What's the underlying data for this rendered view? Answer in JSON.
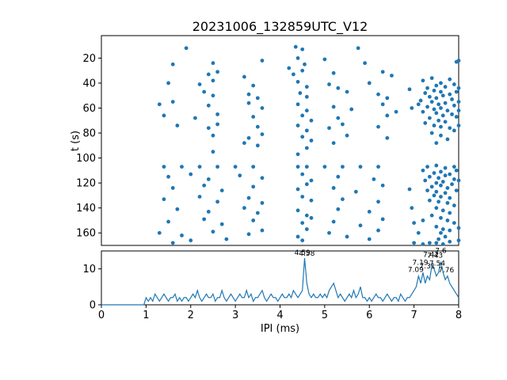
{
  "chart_data": {
    "type": "scatter",
    "title": "20231006_132859UTC_V12",
    "accent_color": "#1f77b4",
    "scatter": {
      "type": "scatter",
      "ylabel": "t (s)",
      "xlim": [
        0,
        8
      ],
      "ylim": [
        2,
        170
      ],
      "y_inverted": true,
      "yticks": [
        20,
        40,
        60,
        80,
        100,
        120,
        140,
        160
      ],
      "points": [
        [
          1.9,
          12
        ],
        [
          4.35,
          11
        ],
        [
          4.5,
          13
        ],
        [
          5.75,
          12
        ],
        [
          1.6,
          25
        ],
        [
          2.5,
          24
        ],
        [
          3.6,
          22
        ],
        [
          4.4,
          20
        ],
        [
          4.55,
          25
        ],
        [
          5.0,
          21
        ],
        [
          5.9,
          24
        ],
        [
          4.2,
          28
        ],
        [
          7.95,
          23
        ],
        [
          8.0,
          22
        ],
        [
          2.4,
          33
        ],
        [
          2.6,
          31
        ],
        [
          3.2,
          35
        ],
        [
          4.3,
          33
        ],
        [
          4.5,
          30
        ],
        [
          5.2,
          32
        ],
        [
          6.3,
          31
        ],
        [
          6.5,
          34
        ],
        [
          1.5,
          40
        ],
        [
          2.2,
          41
        ],
        [
          2.5,
          38
        ],
        [
          3.4,
          42
        ],
        [
          4.4,
          39
        ],
        [
          4.6,
          43
        ],
        [
          5.1,
          41
        ],
        [
          5.3,
          44
        ],
        [
          6.0,
          40
        ],
        [
          2.3,
          47
        ],
        [
          2.5,
          50
        ],
        [
          3.3,
          49
        ],
        [
          3.5,
          52
        ],
        [
          4.45,
          48
        ],
        [
          4.6,
          51
        ],
        [
          5.5,
          47
        ],
        [
          6.2,
          49
        ],
        [
          6.4,
          52
        ],
        [
          1.3,
          57
        ],
        [
          1.6,
          55
        ],
        [
          2.4,
          58
        ],
        [
          3.3,
          56
        ],
        [
          3.6,
          60
        ],
        [
          4.4,
          57
        ],
        [
          4.6,
          62
        ],
        [
          5.2,
          59
        ],
        [
          5.6,
          61
        ],
        [
          6.3,
          57
        ],
        [
          6.6,
          63
        ],
        [
          1.4,
          66
        ],
        [
          2.1,
          68
        ],
        [
          2.6,
          65
        ],
        [
          3.4,
          67
        ],
        [
          4.5,
          66
        ],
        [
          4.7,
          70
        ],
        [
          5.3,
          68
        ],
        [
          6.4,
          66
        ],
        [
          1.7,
          74
        ],
        [
          2.4,
          76
        ],
        [
          2.6,
          73
        ],
        [
          3.5,
          75
        ],
        [
          4.4,
          74
        ],
        [
          4.6,
          78
        ],
        [
          5.1,
          76
        ],
        [
          5.4,
          73
        ],
        [
          6.2,
          75
        ],
        [
          2.5,
          82
        ],
        [
          3.3,
          84
        ],
        [
          3.6,
          81
        ],
        [
          4.5,
          83
        ],
        [
          4.7,
          86
        ],
        [
          5.5,
          82
        ],
        [
          6.4,
          84
        ],
        [
          3.2,
          88
        ],
        [
          5.2,
          88
        ],
        [
          3.5,
          90
        ],
        [
          4.6,
          92
        ],
        [
          2.5,
          95
        ],
        [
          4.4,
          97
        ],
        [
          1.4,
          107
        ],
        [
          1.8,
          107
        ],
        [
          2.2,
          107
        ],
        [
          2.6,
          107
        ],
        [
          3.0,
          107
        ],
        [
          3.4,
          107
        ],
        [
          4.4,
          107
        ],
        [
          4.6,
          107
        ],
        [
          5.0,
          107
        ],
        [
          5.4,
          107
        ],
        [
          5.8,
          107
        ],
        [
          6.2,
          107
        ],
        [
          1.5,
          115
        ],
        [
          2.0,
          113
        ],
        [
          2.4,
          117
        ],
        [
          3.1,
          114
        ],
        [
          3.6,
          116
        ],
        [
          4.5,
          113
        ],
        [
          4.7,
          118
        ],
        [
          5.3,
          115
        ],
        [
          6.1,
          117
        ],
        [
          1.6,
          124
        ],
        [
          2.3,
          122
        ],
        [
          2.7,
          126
        ],
        [
          3.4,
          123
        ],
        [
          4.4,
          125
        ],
        [
          4.6,
          121
        ],
        [
          5.2,
          124
        ],
        [
          5.7,
          127
        ],
        [
          6.3,
          122
        ],
        [
          1.4,
          133
        ],
        [
          2.2,
          131
        ],
        [
          2.6,
          135
        ],
        [
          3.3,
          132
        ],
        [
          3.6,
          136
        ],
        [
          4.5,
          131
        ],
        [
          4.7,
          134
        ],
        [
          5.4,
          133
        ],
        [
          6.2,
          135
        ],
        [
          1.7,
          141
        ],
        [
          2.4,
          143
        ],
        [
          3.2,
          140
        ],
        [
          3.5,
          144
        ],
        [
          4.4,
          142
        ],
        [
          4.6,
          146
        ],
        [
          5.3,
          141
        ],
        [
          6.0,
          143
        ],
        [
          1.5,
          151
        ],
        [
          2.3,
          149
        ],
        [
          2.7,
          153
        ],
        [
          3.4,
          150
        ],
        [
          4.5,
          152
        ],
        [
          4.7,
          148
        ],
        [
          5.2,
          151
        ],
        [
          5.8,
          154
        ],
        [
          6.3,
          149
        ],
        [
          1.3,
          160
        ],
        [
          1.8,
          162
        ],
        [
          2.5,
          159
        ],
        [
          3.3,
          161
        ],
        [
          3.6,
          158
        ],
        [
          4.4,
          163
        ],
        [
          4.6,
          157
        ],
        [
          5.1,
          160
        ],
        [
          5.5,
          163
        ],
        [
          6.2,
          158
        ],
        [
          2.0,
          166
        ],
        [
          2.8,
          165
        ],
        [
          4.5,
          166
        ],
        [
          6.0,
          165
        ],
        [
          1.6,
          168
        ],
        [
          6.9,
          45
        ],
        [
          6.95,
          60
        ],
        [
          7.1,
          57
        ],
        [
          7.2,
          38
        ],
        [
          7.4,
          36
        ],
        [
          7.6,
          40
        ],
        [
          7.8,
          37
        ],
        [
          7.5,
          42
        ],
        [
          7.3,
          44
        ],
        [
          7.7,
          43
        ],
        [
          7.9,
          41
        ],
        [
          8.0,
          44
        ],
        [
          7.45,
          46
        ],
        [
          7.6,
          47
        ],
        [
          7.25,
          48
        ],
        [
          7.8,
          49
        ],
        [
          7.95,
          47
        ],
        [
          7.35,
          51
        ],
        [
          7.5,
          52
        ],
        [
          7.65,
          50
        ],
        [
          7.85,
          53
        ],
        [
          7.15,
          54
        ],
        [
          7.4,
          55
        ],
        [
          7.55,
          57
        ],
        [
          7.7,
          56
        ],
        [
          7.9,
          58
        ],
        [
          8.0,
          55
        ],
        [
          7.3,
          59
        ],
        [
          7.45,
          61
        ],
        [
          7.6,
          60
        ],
        [
          7.75,
          62
        ],
        [
          7.2,
          63
        ],
        [
          7.5,
          64
        ],
        [
          7.65,
          66
        ],
        [
          7.85,
          65
        ],
        [
          7.95,
          67
        ],
        [
          7.35,
          68
        ],
        [
          7.55,
          70
        ],
        [
          7.7,
          71
        ],
        [
          7.25,
          72
        ],
        [
          7.45,
          74
        ],
        [
          7.6,
          75
        ],
        [
          7.8,
          76
        ],
        [
          7.9,
          78
        ],
        [
          7.4,
          80
        ],
        [
          7.6,
          82
        ],
        [
          7.75,
          85
        ],
        [
          7.5,
          88
        ],
        [
          8.0,
          62
        ],
        [
          8.0,
          74
        ],
        [
          7.3,
          107
        ],
        [
          7.5,
          106
        ],
        [
          7.7,
          108
        ],
        [
          7.9,
          107
        ],
        [
          7.2,
          110
        ],
        [
          7.45,
          112
        ],
        [
          7.6,
          111
        ],
        [
          7.8,
          113
        ],
        [
          7.95,
          110
        ],
        [
          7.35,
          115
        ],
        [
          7.55,
          116
        ],
        [
          7.7,
          114
        ],
        [
          7.9,
          117
        ],
        [
          7.25,
          118
        ],
        [
          7.5,
          120
        ],
        [
          7.65,
          119
        ],
        [
          7.85,
          121
        ],
        [
          8.0,
          118
        ],
        [
          7.4,
          123
        ],
        [
          7.6,
          122
        ],
        [
          7.75,
          124
        ],
        [
          7.3,
          126
        ],
        [
          7.5,
          127
        ],
        [
          7.7,
          128
        ],
        [
          7.95,
          126
        ],
        [
          7.45,
          130
        ],
        [
          7.6,
          131
        ],
        [
          7.8,
          132
        ],
        [
          7.35,
          134
        ],
        [
          7.55,
          135
        ],
        [
          7.75,
          136
        ],
        [
          7.9,
          138
        ],
        [
          7.5,
          140
        ],
        [
          7.65,
          142
        ],
        [
          7.8,
          144
        ],
        [
          7.4,
          146
        ],
        [
          7.6,
          148
        ],
        [
          7.75,
          150
        ],
        [
          7.9,
          152
        ],
        [
          7.5,
          155
        ],
        [
          7.65,
          157
        ],
        [
          7.8,
          158
        ],
        [
          7.6,
          160
        ],
        [
          7.7,
          163
        ],
        [
          7.55,
          165
        ],
        [
          8.0,
          156
        ],
        [
          8.0,
          166
        ],
        [
          7.2,
          150
        ],
        [
          7.1,
          160
        ],
        [
          7.0,
          152
        ],
        [
          6.95,
          140
        ],
        [
          6.9,
          125
        ],
        [
          7.0,
          168
        ],
        [
          7.2,
          169
        ],
        [
          7.5,
          168
        ],
        [
          7.35,
          168
        ],
        [
          7.65,
          169
        ],
        [
          7.8,
          167
        ]
      ]
    },
    "hist": {
      "type": "line",
      "xlabel": "IPI (ms)",
      "xlim": [
        0,
        8
      ],
      "ylim": [
        0,
        15
      ],
      "xticks": [
        0,
        1,
        2,
        3,
        4,
        5,
        6,
        7,
        8
      ],
      "yticks": [
        0,
        10
      ],
      "bin_start": 0,
      "bin_step": 0.05,
      "counts": [
        0,
        0,
        0,
        0,
        0,
        0,
        0,
        0,
        0,
        0,
        0,
        0,
        0,
        0,
        0,
        0,
        0,
        0,
        0,
        0,
        2,
        1,
        2,
        1,
        3,
        2,
        1,
        2,
        3,
        2,
        1,
        2,
        2,
        3,
        1,
        2,
        1,
        2,
        2,
        1,
        2,
        3,
        2,
        4,
        2,
        1,
        2,
        3,
        2,
        2,
        3,
        1,
        2,
        2,
        4,
        2,
        1,
        2,
        3,
        2,
        1,
        2,
        3,
        2,
        2,
        4,
        2,
        3,
        1,
        2,
        2,
        3,
        4,
        2,
        1,
        2,
        3,
        2,
        2,
        1,
        2,
        3,
        2,
        2,
        3,
        2,
        4,
        3,
        2,
        3,
        4,
        13,
        6,
        3,
        2,
        3,
        2,
        2,
        3,
        2,
        3,
        2,
        4,
        5,
        6,
        4,
        2,
        3,
        2,
        1,
        2,
        3,
        2,
        4,
        2,
        3,
        5,
        2,
        2,
        1,
        2,
        1,
        2,
        3,
        2,
        2,
        1,
        2,
        3,
        2,
        1,
        2,
        2,
        1,
        3,
        2,
        1,
        2,
        2,
        3,
        4,
        5,
        8,
        6,
        9,
        6,
        8,
        7,
        11,
        10,
        8,
        9,
        12,
        9,
        7,
        8,
        6,
        5,
        4,
        3,
        2
      ],
      "annotations": [
        {
          "label": "4.59",
          "x": 4.5,
          "y": 13.9
        },
        {
          "label": "4.58",
          "x": 4.6,
          "y": 13.7
        },
        {
          "label": "7.6",
          "x": 7.6,
          "y": 14.4
        },
        {
          "label": "7.42",
          "x": 7.38,
          "y": 13.3
        },
        {
          "label": "7.43",
          "x": 7.47,
          "y": 13.1
        },
        {
          "label": "7.19",
          "x": 7.14,
          "y": 11.1
        },
        {
          "label": "7.54",
          "x": 7.52,
          "y": 10.9
        },
        {
          "label": "7.31",
          "x": 7.3,
          "y": 10.1
        },
        {
          "label": "7.09",
          "x": 7.04,
          "y": 9.2
        },
        {
          "label": "7.76",
          "x": 7.72,
          "y": 9.0
        }
      ]
    }
  }
}
